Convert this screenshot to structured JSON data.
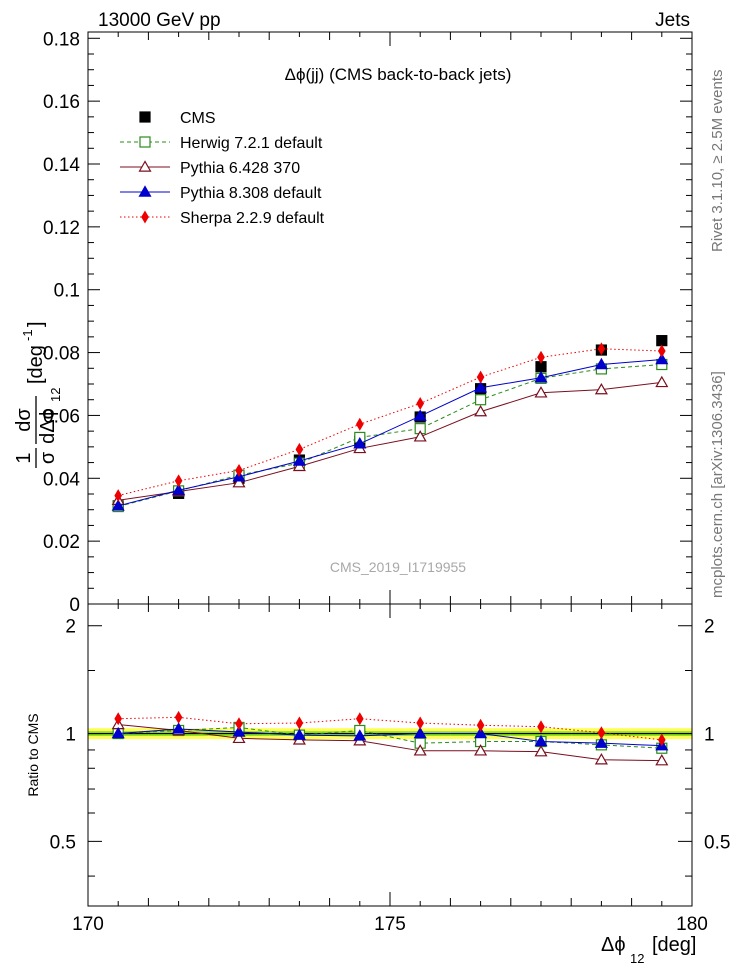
{
  "header": {
    "left": "13000 GeV pp",
    "right": "Jets"
  },
  "side_labels": {
    "rivet": "Rivet 3.1.10, ≥ 2.5M events",
    "mcplots": "mcplots.cern.ch [arXiv:1306.3436]"
  },
  "chart_data": [
    {
      "type": "scatter",
      "panel": "main",
      "title": "Δϕ(jj) (CMS back-to-back jets)",
      "watermark": "CMS_2019_I1719955",
      "ylabel": {
        "fraction_numerator": "1",
        "fraction_denominator": "σ",
        "derivative_numerator": "dσ",
        "derivative_denominator": "dΔϕ",
        "derivative_subscript": "12",
        "unit": "[deg",
        "unit_exponent": "-1",
        "unit_close": "]"
      },
      "xlim": [
        170,
        180
      ],
      "ylim": [
        0,
        0.182
      ],
      "yticks": [
        0,
        0.02,
        0.04,
        0.06,
        0.08,
        0.1,
        0.12,
        0.14,
        0.16,
        0.18
      ],
      "ytick_labels": [
        "0",
        "0.02",
        "0.04",
        "0.06",
        "0.08",
        "0.1",
        "0.12",
        "0.14",
        "0.16",
        "0.18"
      ],
      "legend_position": "top-left",
      "x": [
        170.5,
        171.5,
        172.5,
        173.5,
        174.5,
        175.5,
        176.5,
        177.5,
        178.5,
        179.5
      ],
      "series": [
        {
          "name": "CMS",
          "color": "#000000",
          "marker": "filled-square",
          "line": "none",
          "values": [
            0.0312,
            0.0352,
            0.04,
            0.0458,
            0.0518,
            0.0595,
            0.0685,
            0.0755,
            0.0808,
            0.0838
          ]
        },
        {
          "name": "Herwig 7.2.1 default",
          "color": "#2a8c1a",
          "marker": "open-square",
          "line": "dashed",
          "values": [
            0.031,
            0.036,
            0.041,
            0.0448,
            0.053,
            0.0558,
            0.065,
            0.0718,
            0.0748,
            0.0762
          ]
        },
        {
          "name": "Pythia 6.428 370",
          "color": "#7a0f1e",
          "marker": "open-triangle",
          "line": "solid",
          "values": [
            0.033,
            0.0358,
            0.0386,
            0.0438,
            0.0495,
            0.0532,
            0.0612,
            0.0672,
            0.0682,
            0.0705
          ]
        },
        {
          "name": "Pythia 8.308 default",
          "color": "#0000cc",
          "marker": "filled-triangle",
          "line": "solid",
          "values": [
            0.0312,
            0.0362,
            0.0405,
            0.0455,
            0.051,
            0.0598,
            0.0688,
            0.072,
            0.0762,
            0.0778
          ]
        },
        {
          "name": "Sherpa 2.2.9 default",
          "color": "#ee0000",
          "marker": "filled-diamond",
          "line": "dotted",
          "values": [
            0.0345,
            0.0392,
            0.0425,
            0.0492,
            0.0572,
            0.0638,
            0.0722,
            0.0785,
            0.0812,
            0.0805
          ]
        }
      ]
    },
    {
      "type": "scatter",
      "panel": "ratio",
      "ylabel": "Ratio to CMS",
      "xlabel": {
        "main": "Δϕ",
        "subscript": "12",
        "unit": "[deg]"
      },
      "xlim": [
        170,
        180
      ],
      "ylim": [
        0.33,
        2.3
      ],
      "log_y": true,
      "yticks": [
        0.5,
        1,
        2
      ],
      "ytick_labels": [
        "0.5",
        "1",
        "2"
      ],
      "xticks": [
        170,
        175,
        180
      ],
      "xtick_labels": [
        "170",
        "175",
        "180"
      ],
      "x": [
        170.5,
        171.5,
        172.5,
        173.5,
        174.5,
        175.5,
        176.5,
        177.5,
        178.5,
        179.5
      ],
      "band": {
        "color_inner": "#88dd22",
        "color_outer": "#ffff55",
        "inner": [
          0.015,
          0.015,
          0.015,
          0.015,
          0.015,
          0.015,
          0.015,
          0.015,
          0.015,
          0.015
        ],
        "outer": [
          0.035,
          0.035,
          0.035,
          0.035,
          0.035,
          0.035,
          0.035,
          0.035,
          0.035,
          0.035
        ]
      },
      "series": [
        {
          "name": "Herwig 7.2.1 default",
          "color": "#2a8c1a",
          "marker": "open-square",
          "line": "dashed",
          "values": [
            1.0,
            1.02,
            1.04,
            0.99,
            1.02,
            0.94,
            0.95,
            0.95,
            0.93,
            0.91
          ]
        },
        {
          "name": "Pythia 6.428 370",
          "color": "#7a0f1e",
          "marker": "open-triangle",
          "line": "solid",
          "values": [
            1.06,
            1.02,
            0.97,
            0.96,
            0.955,
            0.895,
            0.895,
            0.89,
            0.845,
            0.84
          ]
        },
        {
          "name": "Pythia 8.308 default",
          "color": "#0000cc",
          "marker": "filled-triangle",
          "line": "solid",
          "values": [
            1.0,
            1.03,
            1.01,
            0.99,
            0.985,
            1.0,
            1.0,
            0.95,
            0.94,
            0.925
          ]
        },
        {
          "name": "Sherpa 2.2.9 default",
          "color": "#ee0000",
          "marker": "filled-diamond",
          "line": "dotted",
          "values": [
            1.1,
            1.11,
            1.065,
            1.07,
            1.1,
            1.07,
            1.055,
            1.045,
            1.005,
            0.96
          ]
        }
      ]
    }
  ]
}
